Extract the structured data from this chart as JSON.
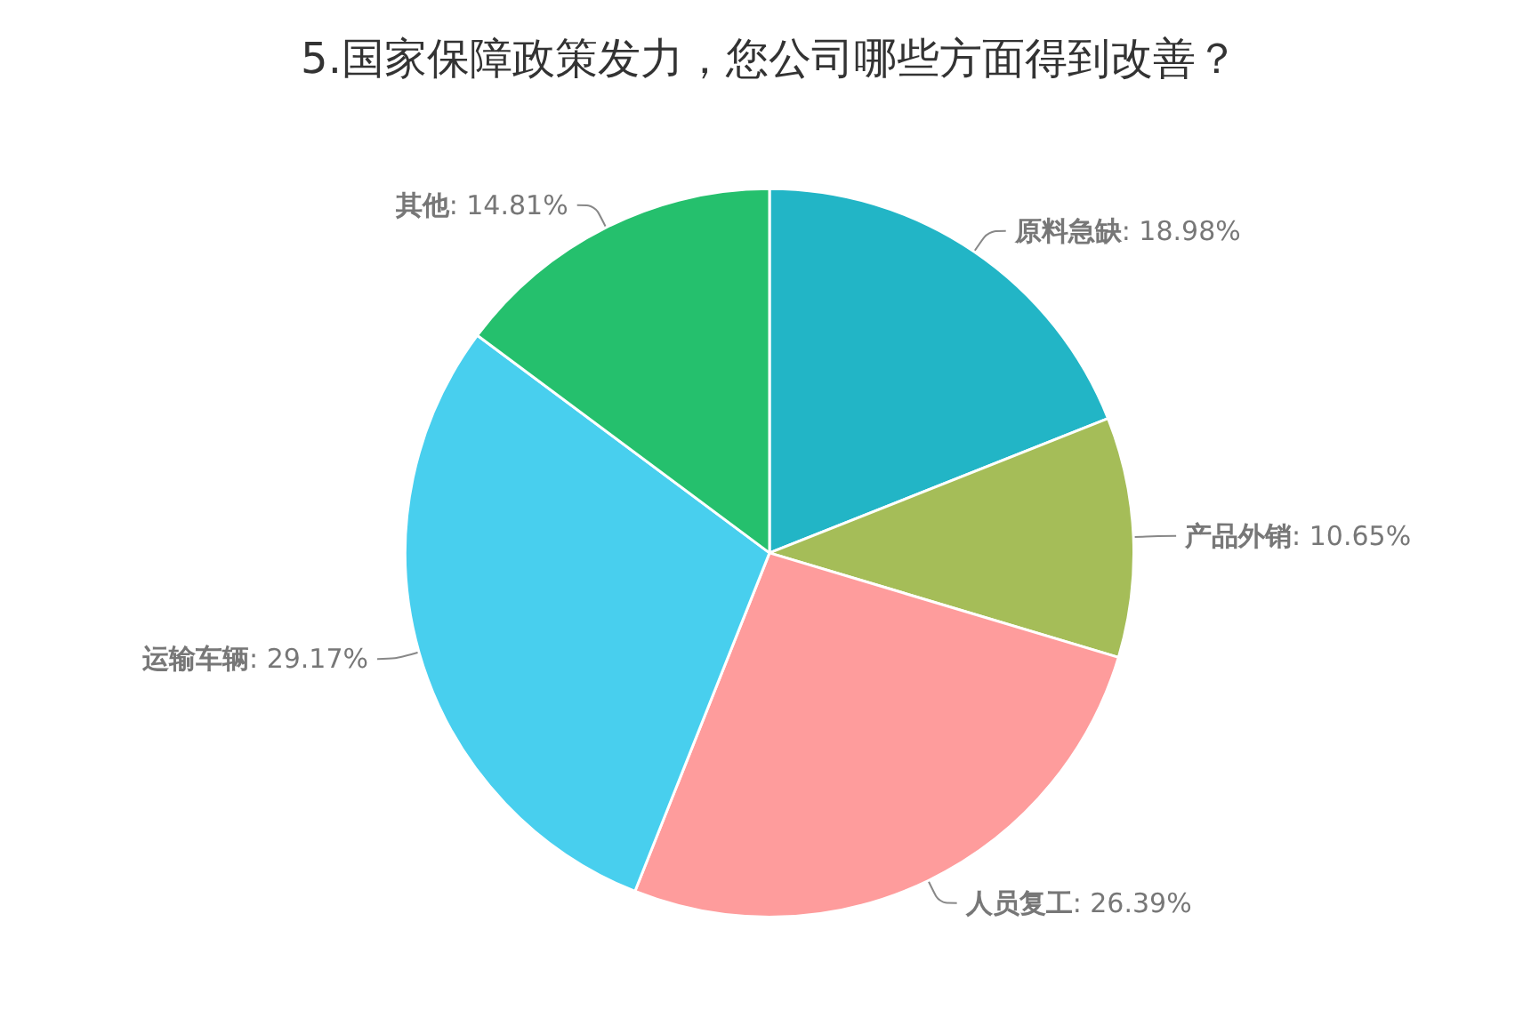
{
  "chart_data": {
    "type": "pie",
    "title": "5.国家保障政策发力，您公司哪些方面得到改善？",
    "categories": [
      "原料急缺",
      "产品外销",
      "人员复工",
      "运输车辆",
      "其他"
    ],
    "values": [
      18.98,
      10.65,
      26.39,
      29.17,
      14.81
    ],
    "value_labels": [
      ": 18.98%",
      ": 10.65%",
      ": 26.39%",
      ": 29.17%",
      ": 14.81%"
    ],
    "colors": [
      "#22b5c6",
      "#a5bd58",
      "#fe9c9c",
      "#48cfee",
      "#25c06d"
    ],
    "legend": false
  }
}
